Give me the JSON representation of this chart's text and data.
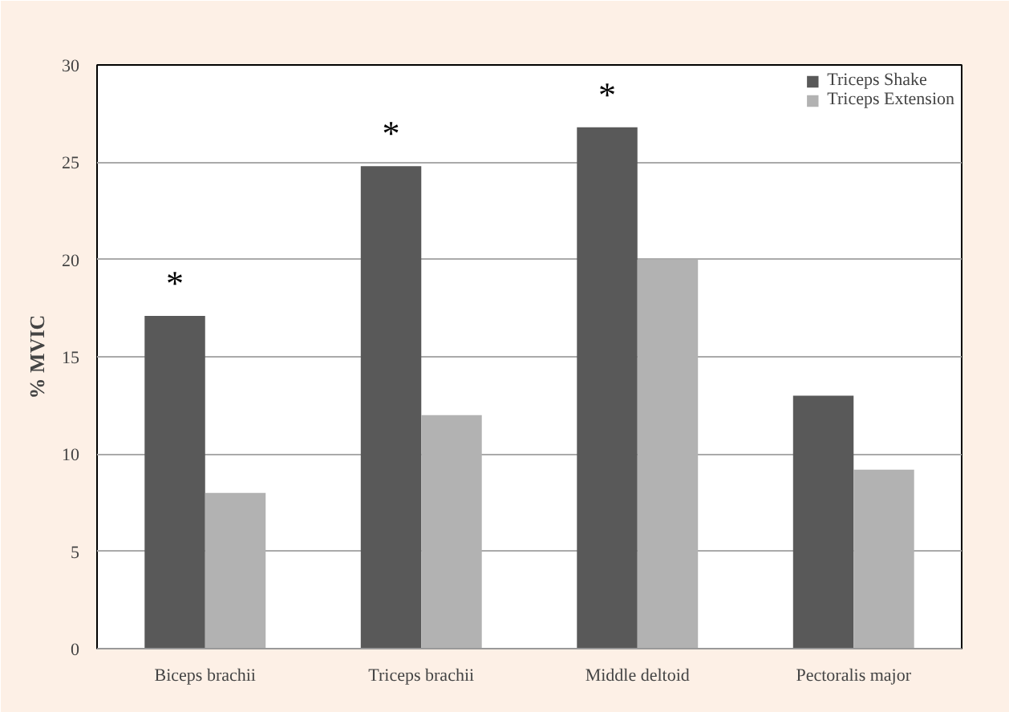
{
  "chart_data": {
    "type": "bar",
    "ylabel": "% MVIC",
    "categories": [
      "Biceps brachii",
      "Triceps brachii",
      "Middle deltoid",
      "Pectoralis major"
    ],
    "series": [
      {
        "name": "Triceps Shake",
        "color": "#595959",
        "values": [
          17.1,
          24.8,
          26.8,
          13.0
        ]
      },
      {
        "name": "Triceps Extension",
        "color": "#b2b2b2",
        "values": [
          8.0,
          12.0,
          20.0,
          9.2
        ]
      }
    ],
    "ylim": [
      0,
      30
    ],
    "yticks": [
      0,
      5,
      10,
      15,
      20,
      25,
      30
    ],
    "grid": "y",
    "legend": "top right",
    "annotations": [
      {
        "text": "*",
        "x": "Biceps brachii",
        "y": 17.1
      },
      {
        "text": "*",
        "x": "Triceps brachii",
        "y": 24.8
      },
      {
        "text": "*",
        "x": "Middle deltoid",
        "y": 26.8
      }
    ]
  }
}
